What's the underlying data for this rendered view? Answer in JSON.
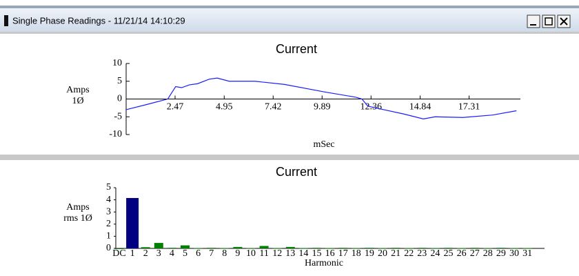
{
  "window": {
    "title": "Single Phase Readings - 11/21/14 14:10:29"
  },
  "chart_data": [
    {
      "type": "line",
      "title": "Current",
      "ylabel": [
        "Amps",
        "1Ø"
      ],
      "xlabel": "mSec",
      "x": [
        0,
        1,
        2.1,
        2.5,
        2.8,
        3.2,
        3.6,
        4.2,
        4.6,
        5.2,
        6.5,
        8,
        10,
        11.6,
        11.9,
        12.2,
        13,
        14,
        15,
        15.6,
        17,
        18.5,
        19.7
      ],
      "series": [
        {
          "color": "#1a1aff",
          "values": [
            -3,
            -1.6,
            0,
            3.5,
            3.2,
            4,
            4.3,
            5.6,
            5.9,
            5,
            5,
            4.1,
            2,
            0.5,
            0,
            -2,
            -3,
            -4.2,
            -5.6,
            -5,
            -5.2,
            -4.5,
            -3.3
          ]
        }
      ],
      "xlim": [
        0,
        19.9
      ],
      "ylim": [
        -10,
        10
      ],
      "xticks": [
        2.47,
        4.95,
        7.42,
        9.89,
        12.36,
        14.84,
        17.31
      ],
      "yticks": [
        10,
        5,
        0,
        -5,
        -10
      ]
    },
    {
      "type": "bar",
      "title": "Current",
      "ylabel": [
        "Amps",
        "rms 1Ø"
      ],
      "xlabel": "Harmonic",
      "categories": [
        "DC",
        "1",
        "2",
        "3",
        "4",
        "5",
        "6",
        "7",
        "8",
        "9",
        "10",
        "11",
        "12",
        "13",
        "14",
        "15",
        "16",
        "17",
        "18",
        "19",
        "20",
        "21",
        "22",
        "23",
        "24",
        "25",
        "26",
        "27",
        "28",
        "29",
        "30",
        "31"
      ],
      "values": [
        0,
        4.15,
        0.1,
        0.45,
        0.05,
        0.25,
        0.02,
        0.05,
        0.02,
        0.12,
        0.02,
        0.2,
        0.02,
        0.12,
        0.02,
        0.05,
        0.02,
        0.05,
        0.02,
        0.05,
        0.02,
        0.05,
        0.02,
        0.05,
        0.02,
        0.05,
        0.02,
        0.05,
        0.02,
        0.05,
        0.02,
        0.02
      ],
      "colors": [
        "#008000",
        "#000080",
        "#008000",
        "#008000",
        "#008000",
        "#008000",
        "#008000",
        "#008000",
        "#008000",
        "#008000",
        "#008000",
        "#008000",
        "#008000",
        "#008000",
        "#008000",
        "#008000",
        "#008000",
        "#008000",
        "#008000",
        "#008000",
        "#008000",
        "#008000",
        "#008000",
        "#008000",
        "#008000",
        "#008000",
        "#008000",
        "#008000",
        "#008000",
        "#008000",
        "#008000",
        "#008000"
      ],
      "ylim": [
        0,
        5
      ],
      "yticks": [
        0,
        1,
        2,
        3,
        4,
        5
      ]
    }
  ]
}
